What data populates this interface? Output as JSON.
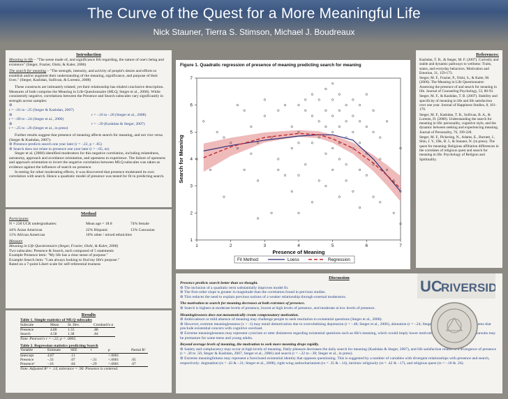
{
  "header": {
    "title": "The Curve of the Quest for a More Meaningful Life",
    "authors": "Nick Stauner, Tierra S. Stimson, Michael J. Boudreaux"
  },
  "introduction": {
    "heading": "Introduction",
    "p1_term": "Meaning in life",
    "p1_text": " – \"The sense made of, and significance felt regarding, the nature of one's being and existence\" (Steger, Frazier, Oishi, & Kaler, 2006)",
    "p2_term": "The search for meaning",
    "p2_text": " – \"The strength, intensity, and activity of people's desire and efforts to establish and/or augment their understanding of the meaning, significance, and purpose of their lives.\" (Steger, Kashdan, Sullivan, & Lorentz, 2008)",
    "p3": "These constructs are intimately related; yet their relationship has eluded conclusive description. Measures of both comprise the Meaning in Life Questionnaire (MLQ; Steger et al., 2006). While consistently negative, correlations between the Presence and Search subscales vary significantly in strength across samples:",
    "corr": [
      {
        "a": "r = -.01 to -.25 (Steger & Kashdan, 2007)",
        "b": ""
      },
      {
        "a": "r = -.09 to -.24 (Steger et al., 2006)",
        "b": "r = -.16 to -.20 (Steger et al., 2008)"
      },
      {
        "a": "r = -.25 to -.26 (Steger et al., in press)",
        "b": "r = -.39 (Kashdan & Steger, 2007)"
      }
    ],
    "p4": "Further results suggest that presence of meaning affects search for meaning, and not vice versa (Steger & Kashdan, 2007):",
    "bullets": [
      "Presence predicts search one year later (r = -.22, p < .05)",
      "Search does not relate to presence one year later (r = -.05, ns)"
    ],
    "p5": "Steger et al. (2008) identified moderators for this negative correlation, including relatedness, autonomy, approach and avoidance orientation, and openness to experience. The failure of openness and approach orientation to invert the negative correlation between MLQ subscales was taken as evidence against the influence of search on presence.",
    "p6": "In testing for other moderating effects, it was discovered that presence moderated its own correlation with search. Hence a quadratic model of presence was tested for fit in predicting search."
  },
  "method": {
    "heading": "Method",
    "participants_label": "Participants",
    "participants": "N = 238 UCR undergraduates:",
    "mean_age": "Mean age = 18.8",
    "female": "74% female",
    "eth1": "44% Asian American",
    "eth2": "22% Hispanic",
    "eth3": "13% Caucasian",
    "eth4": "11% African American",
    "eth5": "10% other / mixed ethnicities",
    "measure_label": "Measure",
    "measure": "Meaning in Life Questionnaire (Steger, Frazier, Oishi, & Kaler, 2006)",
    "m1": "Two subscales: Presence & Search, each composed of 5 statements",
    "m2": "Example Presence item: \"My life has a clear sense of purpose.\"",
    "m3": "Example Search item: \"I am always looking to find my life's purpose.\"",
    "m4": "Rated on a 7-point Likert scale for self-referential trueness"
  },
  "results": {
    "heading": "Results",
    "t1_title": "Table 1. Simple statistics of MLQ subscales",
    "t1_head": [
      "Subscale",
      "Mean",
      "St. Dev.",
      "Cronbach's α"
    ],
    "t1_rows": [
      [
        "Presence",
        "4.80",
        "1.33",
        ".88"
      ],
      [
        "Search",
        "4.58",
        "1.38",
        ".84"
      ]
    ],
    "t1_note": "Note. Pearson's r = -.22, p = .0005.",
    "t2_title": "Table 2. Regression statistics predicting Search",
    "t2_head": [
      "Variable",
      "Estimate",
      "SEE",
      "t",
      "p",
      "Partial R²"
    ],
    "t2_rows": [
      [
        "Intercept",
        "4.87",
        ".11",
        "",
        "<.0001",
        ""
      ],
      [
        "Presence",
        "-.33",
        ".07",
        "-.31",
        "<.0001",
        ".05"
      ],
      [
        "Presence²",
        "-.16",
        ".04",
        "-.29",
        "<.0001",
        ".07"
      ]
    ],
    "t2_note": "Note. Adjusted R² = .14, tolerance = .90. Presence is centered."
  },
  "figure": {
    "caption": "Figure 1. Quadratic regression of presence of meaning predicting search for meaning",
    "legend_label": "Fit Method:",
    "legend_loess": "Loess",
    "legend_regression": "Regression"
  },
  "chart_data": {
    "type": "scatter",
    "title": "Figure 1. Quadratic regression of presence of meaning predicting search for meaning",
    "xlabel": "Presence of Meaning",
    "ylabel": "Search for Meaning",
    "xlim": [
      1,
      7
    ],
    "ylim": [
      1,
      7
    ],
    "xticks": [
      "1",
      "2",
      "3",
      "4",
      "5",
      "6",
      "7"
    ],
    "yticks": [
      "1",
      "2",
      "3",
      "4",
      "5",
      "6",
      "7"
    ],
    "grid": false,
    "legend": "bottom",
    "colors": {
      "loess": "#2c2f7a",
      "regression": "#c0272d",
      "band": "#e9a3a3"
    },
    "points": [
      [
        1.0,
        4.0
      ],
      [
        1.2,
        5.4
      ],
      [
        1.4,
        3.6
      ],
      [
        1.6,
        5.0
      ],
      [
        1.8,
        4.8
      ],
      [
        1.8,
        2.6
      ],
      [
        2.0,
        4.6
      ],
      [
        2.2,
        4.4
      ],
      [
        2.2,
        6.0
      ],
      [
        2.4,
        3.6
      ],
      [
        2.4,
        5.8
      ],
      [
        2.6,
        5.2
      ],
      [
        2.6,
        4.2
      ],
      [
        2.8,
        4.6
      ],
      [
        2.8,
        1.8
      ],
      [
        2.8,
        3.2
      ],
      [
        3.0,
        5.6
      ],
      [
        3.0,
        6.2
      ],
      [
        3.2,
        4.8
      ],
      [
        3.2,
        2.0
      ],
      [
        3.4,
        5.8
      ],
      [
        3.4,
        4.0
      ],
      [
        3.4,
        3.6
      ],
      [
        3.6,
        3.4
      ],
      [
        3.6,
        6.0
      ],
      [
        3.8,
        5.2
      ],
      [
        3.8,
        4.4
      ],
      [
        3.8,
        2.8
      ],
      [
        4.0,
        6.0
      ],
      [
        4.0,
        5.0
      ],
      [
        4.0,
        4.6
      ],
      [
        4.0,
        3.4
      ],
      [
        4.0,
        2.0
      ],
      [
        4.2,
        6.2
      ],
      [
        4.2,
        5.8
      ],
      [
        4.2,
        3.8
      ],
      [
        4.4,
        5.6
      ],
      [
        4.4,
        4.6
      ],
      [
        4.4,
        6.4
      ],
      [
        4.4,
        2.4
      ],
      [
        4.6,
        5.4
      ],
      [
        4.6,
        4.8
      ],
      [
        4.6,
        6.2
      ],
      [
        4.6,
        3.2
      ],
      [
        4.8,
        5.8
      ],
      [
        4.8,
        5.2
      ],
      [
        4.8,
        4.2
      ],
      [
        4.8,
        6.6
      ],
      [
        4.8,
        3.0
      ],
      [
        5.0,
        6.2
      ],
      [
        5.0,
        5.6
      ],
      [
        5.0,
        5.0
      ],
      [
        5.0,
        4.4
      ],
      [
        5.0,
        3.6
      ],
      [
        5.0,
        6.8
      ],
      [
        5.2,
        5.8
      ],
      [
        5.2,
        5.2
      ],
      [
        5.2,
        4.6
      ],
      [
        5.2,
        4.0
      ],
      [
        5.2,
        2.6
      ],
      [
        5.2,
        6.4
      ],
      [
        5.4,
        6.0
      ],
      [
        5.4,
        5.4
      ],
      [
        5.4,
        4.8
      ],
      [
        5.4,
        3.8
      ],
      [
        5.4,
        3.2
      ],
      [
        5.6,
        5.6
      ],
      [
        5.6,
        5.0
      ],
      [
        5.6,
        4.4
      ],
      [
        5.6,
        6.2
      ],
      [
        5.6,
        2.8
      ],
      [
        5.8,
        5.4
      ],
      [
        5.8,
        4.6
      ],
      [
        5.8,
        3.6
      ],
      [
        5.8,
        6.0
      ],
      [
        5.8,
        2.2
      ],
      [
        6.0,
        5.2
      ],
      [
        6.0,
        4.2
      ],
      [
        6.0,
        3.4
      ],
      [
        6.0,
        6.4
      ],
      [
        6.2,
        5.0
      ],
      [
        6.2,
        3.8
      ],
      [
        6.2,
        2.6
      ],
      [
        6.2,
        5.8
      ],
      [
        6.4,
        4.0
      ],
      [
        6.4,
        4.8
      ],
      [
        6.4,
        2.4
      ],
      [
        6.6,
        3.6
      ],
      [
        6.6,
        5.4
      ],
      [
        6.8,
        3.2
      ],
      [
        6.8,
        2.0
      ],
      [
        7.0,
        1.6
      ],
      [
        7.0,
        4.4
      ],
      [
        7.0,
        2.8
      ]
    ],
    "loess": [
      [
        1.2,
        4.3
      ],
      [
        2.0,
        4.5
      ],
      [
        3.0,
        4.7
      ],
      [
        4.0,
        4.85
      ],
      [
        4.6,
        4.9
      ],
      [
        5.0,
        4.9
      ],
      [
        5.6,
        4.7
      ],
      [
        6.2,
        4.0
      ],
      [
        6.6,
        3.4
      ],
      [
        7.0,
        2.8
      ]
    ],
    "regression": [
      [
        1.2,
        4.05
      ],
      [
        2.0,
        4.45
      ],
      [
        3.0,
        4.8
      ],
      [
        4.0,
        4.95
      ],
      [
        4.6,
        4.9
      ],
      [
        5.0,
        4.75
      ],
      [
        5.6,
        4.4
      ],
      [
        6.2,
        3.85
      ],
      [
        6.6,
        3.4
      ],
      [
        7.0,
        2.9
      ]
    ]
  },
  "discussion": {
    "heading": "Discussion",
    "s1_title": "Presence predicts search better than we thought.",
    "s1_items": [
      "The inclusion of a quadratic term substantially improves model fit.",
      "The first-order slope is greater in magnitude than the correlation found in previous studies.",
      "This reduces the need to explain previous notions of a weaker relationship through external moderators."
    ],
    "s2_title": "The motivation to search for meaning decreases at both extremes of presence.",
    "s2_items": [
      "Search is highest at moderate levels of presence, lowest at high levels of presence, and moderate at low levels of presence."
    ],
    "s3_title": "Meaninglessness does not monotonically create compensatory motivation.",
    "s3_items": [
      "Ambivalence or mild absence of meaning may challenge people to seek resolution to existential questions (Steger et al., 2008).",
      "However, extreme meaninglessness (x < -1) may entail demotivation due to overwhelming depression (r = -.48; Steger et al., 2006), alienation (r = -.24; Steger et al., 2008), and other problems that preclude existential concern with cognitive overload.",
      "Extreme meaninglessness may represent cynicism or utter disinterest regarding existential questions such as life's meaning, which would imply lower motivation to pursue answers. Such pursuits may be premature for some teens and young adults."
    ],
    "s4_title": "Beyond average levels of meaning, the motivation to seek more meaning drops rapidly.",
    "s4_items": [
      "Satiety and complacency may occur at high levels of meaning. Daily pleasure decreases the daily search for meaning (Kashdan & Steger, 2007), and life satisfaction relates to a divergence of presence (r = .30 to .56; Steger & Kashdan, 2007, Steger et al., 2006) and search (r = -.22 to -.38; Steger et al., in press).",
      "Extreme meaningfulness may represent a foreclosed existential identity that opposes questioning. This is suggested by a number of variables with divergent relationships with presence and search, respectively: dogmatism (rs = .43 & -.21; Steger et al., 2008), right-wing authoritarianism (rs = .35 & -.14), intrinsic religiosity (rs = .42 & -.17), and religious quest (rs = -.18 & .26)."
    ]
  },
  "references": {
    "heading": "References:",
    "items": [
      "Kashdan, T. B., & Steger, M. F. (2007). Curiosity and stable and dynamic pathways to wellness: Traits, states, and everyday behaviors. Motivation and Emotion, 31, 159-173.",
      "Steger, M. F., Frazier, P., Oishi, S., & Kaler, M. (2006). The Meaning in Life Questionnaire: Assessing the presence of and search for meaning in life. Journal of Counseling Psychology, 53, 80-93.",
      "Steger, M. F., & Kashdan, T. B. (2007). Stability and specificity of meaning in life and life satisfaction over one year. Journal of Happiness Studies, 8, 161-179.",
      "Steger, M. F., Kashdan, T. B., Sullivan, B. A., & Lorentz, D. (2008). Understanding the search for meaning in life: personality, cognitive style, and the dynamic between seeking and experiencing meaning. Journal of Personality, 76, 199-228.",
      "Steger, M. F., Pickering, N., Adams, E., Burnett, J., Shin, J. Y., Dik, B. J., & Stauner, N. (in press). The quest for meaning: Religious affiliation differences in the correlates of religious quest and search for meaning in life. Psychology of Religion and Spirituality."
    ]
  },
  "logo": {
    "uc": "UC",
    "riverside": "RIVERSIDE"
  }
}
